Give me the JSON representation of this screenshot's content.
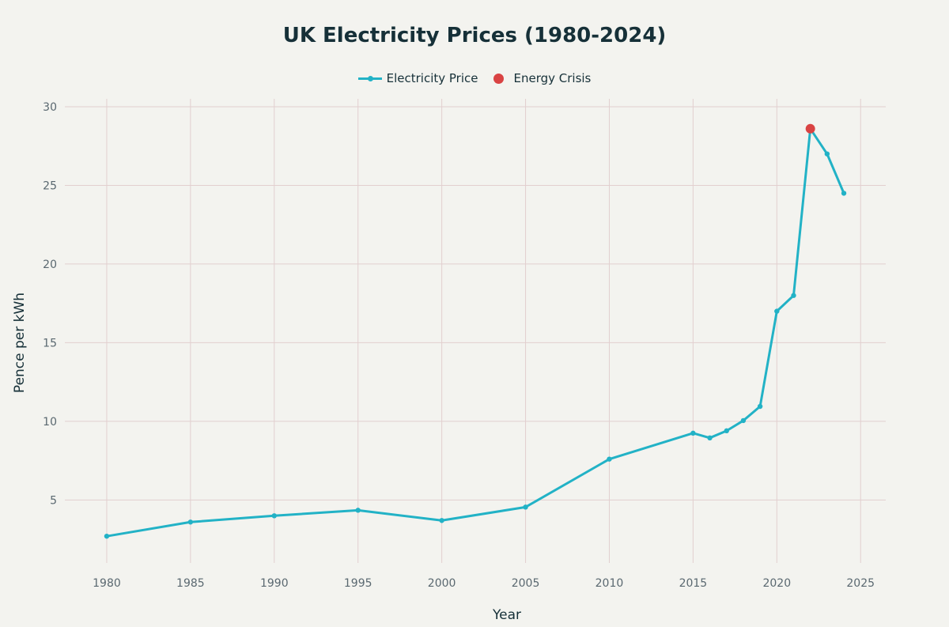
{
  "chart_data": {
    "type": "line",
    "title": "UK Electricity Prices (1980-2024)",
    "xlabel": "Year",
    "ylabel": "Pence per kWh",
    "xlim": [
      1977.5,
      2026.5
    ],
    "ylim": [
      1.0,
      30.5
    ],
    "xticks": [
      1980,
      1985,
      1990,
      1995,
      2000,
      2005,
      2010,
      2015,
      2020,
      2025
    ],
    "yticks": [
      5,
      10,
      15,
      20,
      25,
      30
    ],
    "grid": true,
    "legend_position": "top-center",
    "series": [
      {
        "name": "Electricity Price",
        "color": "#22b2c6",
        "x": [
          1980,
          1985,
          1990,
          1995,
          2000,
          2005,
          2010,
          2015,
          2016,
          2017,
          2018,
          2019,
          2020,
          2021,
          2022,
          2023,
          2024
        ],
        "y": [
          2.7,
          3.6,
          4.0,
          4.35,
          3.7,
          4.55,
          7.6,
          9.25,
          8.95,
          9.4,
          10.05,
          10.95,
          17.0,
          18.0,
          28.6,
          27.0,
          24.5
        ]
      },
      {
        "name": "Energy Crisis",
        "color": "#d94343",
        "x": [
          2022
        ],
        "y": [
          28.6
        ]
      }
    ]
  }
}
